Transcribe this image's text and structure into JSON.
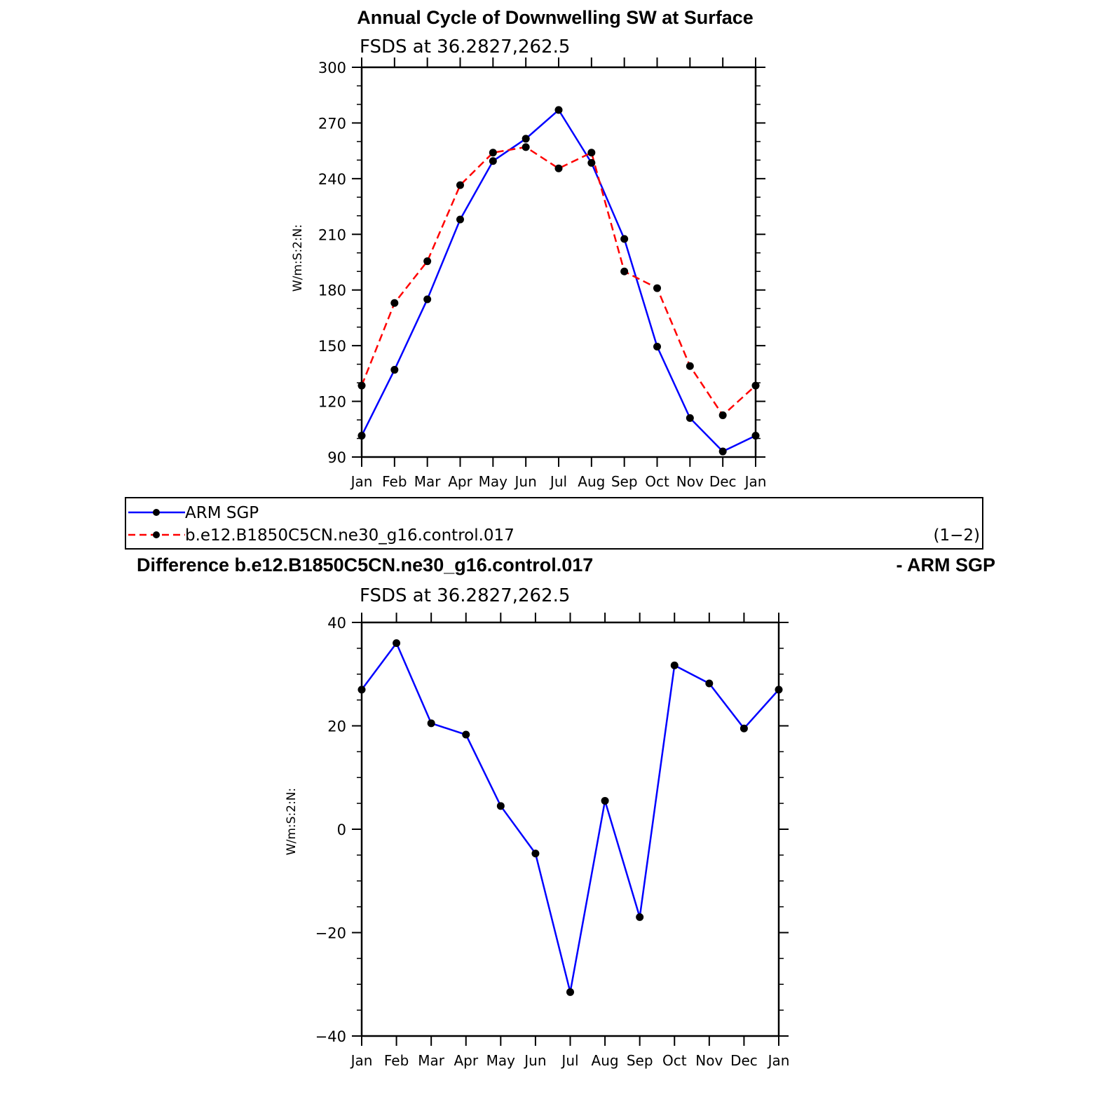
{
  "chart_data": [
    {
      "type": "line",
      "title": "Annual Cycle of Downwelling SW at Surface",
      "subtitle": "FSDS at 36.2827,262.5",
      "ylabel": "W/m:S:2:N:",
      "xlabel": "",
      "ylim": [
        90,
        300
      ],
      "yticks": [
        "90",
        "120",
        "150",
        "180",
        "210",
        "240",
        "270",
        "300"
      ],
      "categories": [
        "Jan",
        "Feb",
        "Mar",
        "Apr",
        "May",
        "Jun",
        "Jul",
        "Aug",
        "Sep",
        "Oct",
        "Nov",
        "Dec",
        "Jan"
      ],
      "series": [
        {
          "name": "ARM SGP",
          "color": "#0000ff",
          "dash": "solid",
          "values": [
            101.5,
            137,
            175,
            218,
            249.5,
            261.5,
            277,
            248.5,
            207.5,
            149.5,
            111,
            93,
            101.5
          ]
        },
        {
          "name": "b.e12.B1850C5CN.ne30_g16.control.017",
          "color": "#ff0000",
          "dash": "dashed",
          "values": [
            128.5,
            173,
            195.5,
            236.5,
            254,
            257,
            245.5,
            254,
            190,
            181,
            139,
            112.5,
            128.5
          ]
        }
      ],
      "legend": {
        "entries": [
          "ARM SGP",
          "b.e12.B1850C5CN.ne30_g16.control.017"
        ],
        "note": "(1−2)"
      }
    },
    {
      "type": "line",
      "title": "Difference b.e12.B1850C5CN.ne30_g16.control.017",
      "title_right": "- ARM SGP",
      "subtitle": "FSDS at 36.2827,262.5",
      "ylabel": "W/m:S:2:N:",
      "xlabel": "",
      "ylim": [
        -40,
        40
      ],
      "yticks": [
        "−40",
        "−20",
        "0",
        "20",
        "40"
      ],
      "categories": [
        "Jan",
        "Feb",
        "Mar",
        "Apr",
        "May",
        "Jun",
        "Jul",
        "Aug",
        "Sep",
        "Oct",
        "Nov",
        "Dec",
        "Jan"
      ],
      "series": [
        {
          "color": "#0000ff",
          "dash": "solid",
          "values": [
            27,
            36,
            20.5,
            18.3,
            4.5,
            -4.7,
            -31.5,
            5.5,
            -17,
            31.7,
            28.2,
            19.5,
            27
          ]
        }
      ]
    }
  ]
}
